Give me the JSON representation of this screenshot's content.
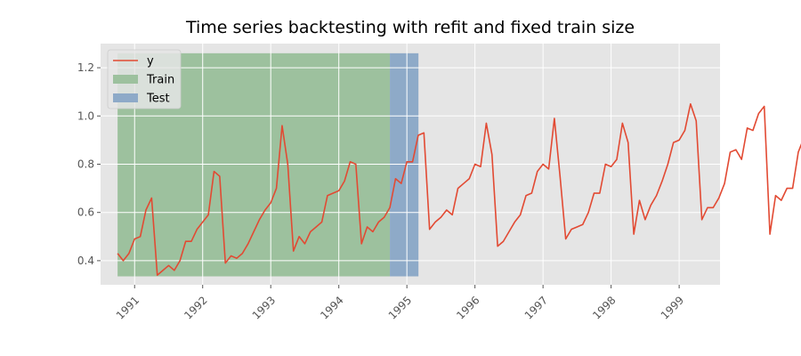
{
  "chart_data": {
    "type": "line",
    "title": "Time series backtesting with refit and fixed train size",
    "xlabel": "",
    "ylabel": "",
    "xlim": [
      1990.5,
      1999.6
    ],
    "ylim": [
      0.3,
      1.3
    ],
    "x_ticks": [
      1991,
      1992,
      1993,
      1994,
      1995,
      1996,
      1997,
      1998,
      1999
    ],
    "y_ticks": [
      0.4,
      0.6,
      0.8,
      1.0,
      1.2
    ],
    "grid": true,
    "legend_position": "top-left",
    "legend": [
      {
        "label": "y",
        "kind": "line",
        "color": "#E24A33"
      },
      {
        "label": "Train",
        "kind": "patch",
        "color": "#9DC19E"
      },
      {
        "label": "Test",
        "kind": "patch",
        "color": "#8EAAC8"
      }
    ],
    "spans": [
      {
        "name": "Train",
        "x_start": 1990.75,
        "x_end": 1994.75,
        "color": "#9DC19E"
      },
      {
        "name": "Test",
        "x_start": 1994.75,
        "x_end": 1995.17,
        "color": "#8EAAC8"
      }
    ],
    "series": [
      {
        "name": "y",
        "color": "#E24A33",
        "start": 1990.75,
        "step": 0.083333,
        "values": [
          0.43,
          0.4,
          0.43,
          0.49,
          0.5,
          0.61,
          0.66,
          0.34,
          0.36,
          0.38,
          0.36,
          0.4,
          0.48,
          0.48,
          0.53,
          0.56,
          0.59,
          0.77,
          0.75,
          0.39,
          0.42,
          0.41,
          0.43,
          0.47,
          0.52,
          0.57,
          0.61,
          0.64,
          0.7,
          0.96,
          0.8,
          0.44,
          0.5,
          0.47,
          0.52,
          0.54,
          0.56,
          0.67,
          0.68,
          0.69,
          0.73,
          0.81,
          0.8,
          0.47,
          0.54,
          0.52,
          0.56,
          0.58,
          0.62,
          0.74,
          0.72,
          0.81,
          0.81,
          0.92,
          0.93,
          0.53,
          0.56,
          0.58,
          0.61,
          0.59,
          0.7,
          0.72,
          0.74,
          0.8,
          0.79,
          0.97,
          0.84,
          0.46,
          0.48,
          0.52,
          0.56,
          0.59,
          0.67,
          0.68,
          0.77,
          0.8,
          0.78,
          0.99,
          0.75,
          0.49,
          0.53,
          0.54,
          0.55,
          0.6,
          0.68,
          0.68,
          0.8,
          0.79,
          0.82,
          0.97,
          0.89,
          0.51,
          0.65,
          0.57,
          0.63,
          0.67,
          0.73,
          0.8,
          0.89,
          0.9,
          0.94,
          1.05,
          0.98,
          0.57,
          0.62,
          0.62,
          0.66,
          0.72,
          0.85,
          0.86,
          0.82,
          0.95,
          0.94,
          1.01,
          1.04,
          0.51,
          0.67,
          0.65,
          0.7,
          0.7,
          0.85,
          0.91,
          0.87,
          1.03,
          1.1,
          1.01,
          1.14,
          0.58,
          0.63,
          0.68,
          0.77,
          0.75,
          0.91,
          0.92,
          1.01,
          1.03,
          1.01,
          1.1,
          1.08,
          0.58,
          0.64,
          0.66,
          0.75,
          0.8,
          0.91,
          0.91,
          1.07,
          1.15,
          1.05,
          1.22,
          1.13,
          0.67,
          0.75,
          0.74,
          0.79,
          0.85,
          1.0,
          1.0,
          1.13,
          1.18,
          1.21,
          1.26,
          1.17,
          0.6,
          0.65,
          0.67,
          0.7,
          0.84,
          0.87,
          1.0,
          1.1,
          1.03,
          1.16,
          1.17,
          1.23,
          0.59,
          0.71,
          0.64,
          0.81,
          0.8,
          0.89,
          1.05,
          1.01,
          1.17,
          1.11,
          1.12,
          1.22,
          0.6,
          0.71,
          0.56,
          0.76,
          0.84,
          0.96,
          1.09,
          1.11,
          1.11,
          1.17,
          1.18,
          1.22,
          0.76,
          0.65,
          0.83,
          0.82,
          0.76
        ]
      }
    ]
  }
}
